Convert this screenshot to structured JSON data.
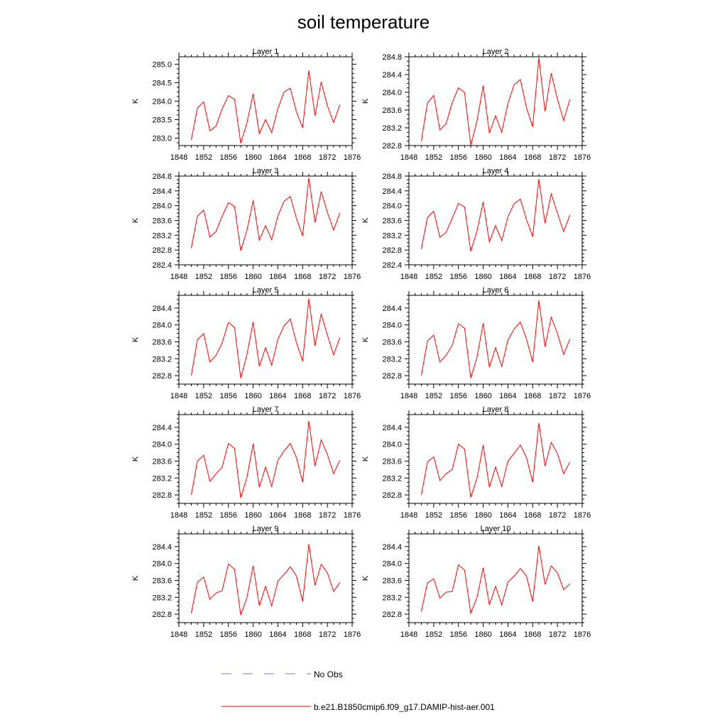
{
  "title": "soil temperature",
  "colors": {
    "model_line": "#ff0000",
    "obs_line": "#7a7ac8",
    "axis": "#000000"
  },
  "legend": {
    "placement": "bottom-center",
    "obs_label": "No Obs",
    "model_label": "b.e21.B1850cmip6.f09_g17.DAMIP-hist-aer.001"
  },
  "chart_data": [
    {
      "type": "line",
      "title": "Layer 1",
      "ylabel": "K",
      "xlim": [
        1848,
        1876
      ],
      "xticks": [
        "1848",
        "1852",
        "1856",
        "1860",
        "1864",
        "1868",
        "1872",
        "1876"
      ],
      "ylim": [
        282.8,
        285.2
      ],
      "yticks": [
        "283.0",
        "283.5",
        "284.0",
        "284.5",
        "285.0"
      ],
      "series": [
        {
          "x": [
            1850,
            1851,
            1852,
            1853,
            1854,
            1855,
            1856,
            1857,
            1858,
            1859,
            1860,
            1861,
            1862,
            1863,
            1864,
            1865,
            1866,
            1867,
            1868,
            1869,
            1870,
            1871,
            1872,
            1873,
            1874
          ],
          "values": [
            282.95,
            283.82,
            283.98,
            283.2,
            283.33,
            283.8,
            284.15,
            284.05,
            282.86,
            283.42,
            284.2,
            283.12,
            283.5,
            283.15,
            283.8,
            284.25,
            284.35,
            283.7,
            283.28,
            284.83,
            283.6,
            284.52,
            283.88,
            283.42,
            283.9
          ]
        }
      ]
    },
    {
      "type": "line",
      "title": "Layer 2",
      "ylabel": "K",
      "xlim": [
        1848,
        1876
      ],
      "xticks": [
        "1848",
        "1852",
        "1856",
        "1860",
        "1864",
        "1868",
        "1872",
        "1876"
      ],
      "ylim": [
        282.8,
        284.8
      ],
      "yticks": [
        "282.8",
        "283.2",
        "283.6",
        "284.0",
        "284.4",
        "284.8"
      ],
      "series": [
        {
          "x": [
            1850,
            1851,
            1852,
            1853,
            1854,
            1855,
            1856,
            1857,
            1858,
            1859,
            1860,
            1861,
            1862,
            1863,
            1864,
            1865,
            1866,
            1867,
            1868,
            1869,
            1870,
            1871,
            1872,
            1873,
            1874
          ],
          "values": [
            282.9,
            283.76,
            283.93,
            283.15,
            283.29,
            283.77,
            284.1,
            283.99,
            282.8,
            283.36,
            284.15,
            283.08,
            283.47,
            283.1,
            283.75,
            284.17,
            284.29,
            283.65,
            283.22,
            284.78,
            283.57,
            284.43,
            283.85,
            283.36,
            283.84
          ]
        }
      ]
    },
    {
      "type": "line",
      "title": "Layer 3",
      "ylabel": "K",
      "xlim": [
        1848,
        1876
      ],
      "xticks": [
        "1848",
        "1852",
        "1856",
        "1860",
        "1864",
        "1868",
        "1872",
        "1876"
      ],
      "ylim": [
        282.4,
        284.8
      ],
      "yticks": [
        "282.4",
        "282.8",
        "283.2",
        "283.6",
        "284.0",
        "284.4",
        "284.8"
      ],
      "series": [
        {
          "x": [
            1850,
            1851,
            1852,
            1853,
            1854,
            1855,
            1856,
            1857,
            1858,
            1859,
            1860,
            1861,
            1862,
            1863,
            1864,
            1865,
            1866,
            1867,
            1868,
            1869,
            1870,
            1871,
            1872,
            1873,
            1874
          ],
          "values": [
            282.85,
            283.72,
            283.88,
            283.15,
            283.3,
            283.72,
            284.08,
            283.98,
            282.78,
            283.34,
            284.14,
            283.06,
            283.46,
            283.08,
            283.72,
            284.12,
            284.25,
            283.65,
            283.18,
            284.75,
            283.54,
            284.38,
            283.82,
            283.34,
            283.8
          ]
        }
      ]
    },
    {
      "type": "line",
      "title": "Layer 4",
      "ylabel": "K",
      "xlim": [
        1848,
        1876
      ],
      "xticks": [
        "1848",
        "1852",
        "1856",
        "1860",
        "1864",
        "1868",
        "1872",
        "1876"
      ],
      "ylim": [
        282.4,
        284.8
      ],
      "yticks": [
        "282.4",
        "282.8",
        "283.2",
        "283.6",
        "284.0",
        "284.4",
        "284.8"
      ],
      "series": [
        {
          "x": [
            1850,
            1851,
            1852,
            1853,
            1854,
            1855,
            1856,
            1857,
            1858,
            1859,
            1860,
            1861,
            1862,
            1863,
            1864,
            1865,
            1866,
            1867,
            1868,
            1869,
            1870,
            1871,
            1872,
            1873,
            1874
          ],
          "values": [
            282.82,
            283.68,
            283.85,
            283.14,
            283.28,
            283.66,
            284.06,
            283.96,
            282.76,
            283.32,
            284.1,
            283.02,
            283.46,
            283.05,
            283.7,
            284.05,
            284.18,
            283.62,
            283.16,
            284.72,
            283.52,
            284.32,
            283.8,
            283.3,
            283.74
          ]
        }
      ]
    },
    {
      "type": "line",
      "title": "Layer 5",
      "ylabel": "K",
      "xlim": [
        1848,
        1876
      ],
      "xticks": [
        "1848",
        "1852",
        "1856",
        "1860",
        "1864",
        "1868",
        "1872",
        "1876"
      ],
      "ylim": [
        282.6,
        284.7
      ],
      "yticks": [
        "282.8",
        "283.2",
        "283.6",
        "284.0",
        "284.4"
      ],
      "series": [
        {
          "x": [
            1850,
            1851,
            1852,
            1853,
            1854,
            1855,
            1856,
            1857,
            1858,
            1859,
            1860,
            1861,
            1862,
            1863,
            1864,
            1865,
            1866,
            1867,
            1868,
            1869,
            1870,
            1871,
            1872,
            1873,
            1874
          ],
          "values": [
            282.8,
            283.65,
            283.8,
            283.12,
            283.28,
            283.58,
            284.06,
            283.94,
            282.74,
            283.3,
            284.07,
            283.02,
            283.46,
            283.05,
            283.66,
            283.98,
            284.14,
            283.58,
            283.14,
            284.62,
            283.5,
            284.26,
            283.76,
            283.29,
            283.7
          ]
        }
      ]
    },
    {
      "type": "line",
      "title": "Layer 6",
      "ylabel": "K",
      "xlim": [
        1848,
        1876
      ],
      "xticks": [
        "1848",
        "1852",
        "1856",
        "1860",
        "1864",
        "1868",
        "1872",
        "1876"
      ],
      "ylim": [
        282.6,
        284.7
      ],
      "yticks": [
        "282.8",
        "283.2",
        "283.6",
        "284.0",
        "284.4"
      ],
      "series": [
        {
          "x": [
            1850,
            1851,
            1852,
            1853,
            1854,
            1855,
            1856,
            1857,
            1858,
            1859,
            1860,
            1861,
            1862,
            1863,
            1864,
            1865,
            1866,
            1867,
            1868,
            1869,
            1870,
            1871,
            1872,
            1873,
            1874
          ],
          "values": [
            282.8,
            283.62,
            283.76,
            283.12,
            283.28,
            283.52,
            284.03,
            283.92,
            282.74,
            283.24,
            284.04,
            283.0,
            283.46,
            283.02,
            283.64,
            283.9,
            284.07,
            283.66,
            283.12,
            284.58,
            283.48,
            284.18,
            283.8,
            283.3,
            283.66
          ]
        }
      ]
    },
    {
      "type": "line",
      "title": "Layer 7",
      "ylabel": "K",
      "xlim": [
        1848,
        1876
      ],
      "xticks": [
        "1848",
        "1852",
        "1856",
        "1860",
        "1864",
        "1868",
        "1872",
        "1876"
      ],
      "ylim": [
        282.6,
        284.7
      ],
      "yticks": [
        "282.8",
        "283.2",
        "283.6",
        "284.0",
        "284.4"
      ],
      "series": [
        {
          "x": [
            1850,
            1851,
            1852,
            1853,
            1854,
            1855,
            1856,
            1857,
            1858,
            1859,
            1860,
            1861,
            1862,
            1863,
            1864,
            1865,
            1866,
            1867,
            1868,
            1869,
            1870,
            1871,
            1872,
            1873,
            1874
          ],
          "values": [
            282.8,
            283.6,
            283.74,
            283.12,
            283.3,
            283.46,
            284.02,
            283.9,
            282.73,
            283.22,
            284.01,
            282.98,
            283.46,
            283.0,
            283.62,
            283.84,
            284.02,
            283.68,
            283.1,
            284.55,
            283.48,
            284.1,
            283.76,
            283.3,
            283.62
          ]
        }
      ]
    },
    {
      "type": "line",
      "title": "Layer 8",
      "ylabel": "K",
      "xlim": [
        1848,
        1876
      ],
      "xticks": [
        "1848",
        "1852",
        "1856",
        "1860",
        "1864",
        "1868",
        "1872",
        "1876"
      ],
      "ylim": [
        282.6,
        284.7
      ],
      "yticks": [
        "282.8",
        "283.2",
        "283.6",
        "284.0",
        "284.4"
      ],
      "series": [
        {
          "x": [
            1850,
            1851,
            1852,
            1853,
            1854,
            1855,
            1856,
            1857,
            1858,
            1859,
            1860,
            1861,
            1862,
            1863,
            1864,
            1865,
            1866,
            1867,
            1868,
            1869,
            1870,
            1871,
            1872,
            1873,
            1874
          ],
          "values": [
            282.8,
            283.58,
            283.7,
            283.14,
            283.3,
            283.4,
            284.0,
            283.88,
            282.74,
            283.2,
            283.98,
            282.98,
            283.46,
            283.0,
            283.6,
            283.78,
            283.98,
            283.68,
            283.1,
            284.5,
            283.48,
            284.04,
            283.78,
            283.3,
            283.58
          ]
        }
      ]
    },
    {
      "type": "line",
      "title": "Layer 9",
      "ylabel": "K",
      "xlim": [
        1848,
        1876
      ],
      "xticks": [
        "1848",
        "1852",
        "1856",
        "1860",
        "1864",
        "1868",
        "1872",
        "1876"
      ],
      "ylim": [
        282.6,
        284.7
      ],
      "yticks": [
        "282.8",
        "283.2",
        "283.6",
        "284.0",
        "284.4"
      ],
      "series": [
        {
          "x": [
            1850,
            1851,
            1852,
            1853,
            1854,
            1855,
            1856,
            1857,
            1858,
            1859,
            1860,
            1861,
            1862,
            1863,
            1864,
            1865,
            1866,
            1867,
            1868,
            1869,
            1870,
            1871,
            1872,
            1873,
            1874
          ],
          "values": [
            282.82,
            283.56,
            283.68,
            283.15,
            283.3,
            283.36,
            283.99,
            283.86,
            282.78,
            283.2,
            283.94,
            283.0,
            283.46,
            283.0,
            283.58,
            283.74,
            283.92,
            283.7,
            283.1,
            284.46,
            283.48,
            283.98,
            283.78,
            283.34,
            283.55
          ]
        }
      ]
    },
    {
      "type": "line",
      "title": "Layer 10",
      "ylabel": "K",
      "xlim": [
        1848,
        1876
      ],
      "xticks": [
        "1848",
        "1852",
        "1856",
        "1860",
        "1864",
        "1868",
        "1872",
        "1876"
      ],
      "ylim": [
        282.6,
        284.7
      ],
      "yticks": [
        "282.8",
        "283.2",
        "283.6",
        "284.0",
        "284.4"
      ],
      "series": [
        {
          "x": [
            1850,
            1851,
            1852,
            1853,
            1854,
            1855,
            1856,
            1857,
            1858,
            1859,
            1860,
            1861,
            1862,
            1863,
            1864,
            1865,
            1866,
            1867,
            1868,
            1869,
            1870,
            1871,
            1872,
            1873,
            1874
          ],
          "values": [
            282.86,
            283.54,
            283.64,
            283.18,
            283.32,
            283.34,
            283.97,
            283.84,
            282.82,
            283.2,
            283.9,
            283.02,
            283.46,
            283.02,
            283.56,
            283.7,
            283.88,
            283.7,
            283.1,
            284.42,
            283.5,
            283.94,
            283.78,
            283.38,
            283.52
          ]
        }
      ]
    }
  ]
}
